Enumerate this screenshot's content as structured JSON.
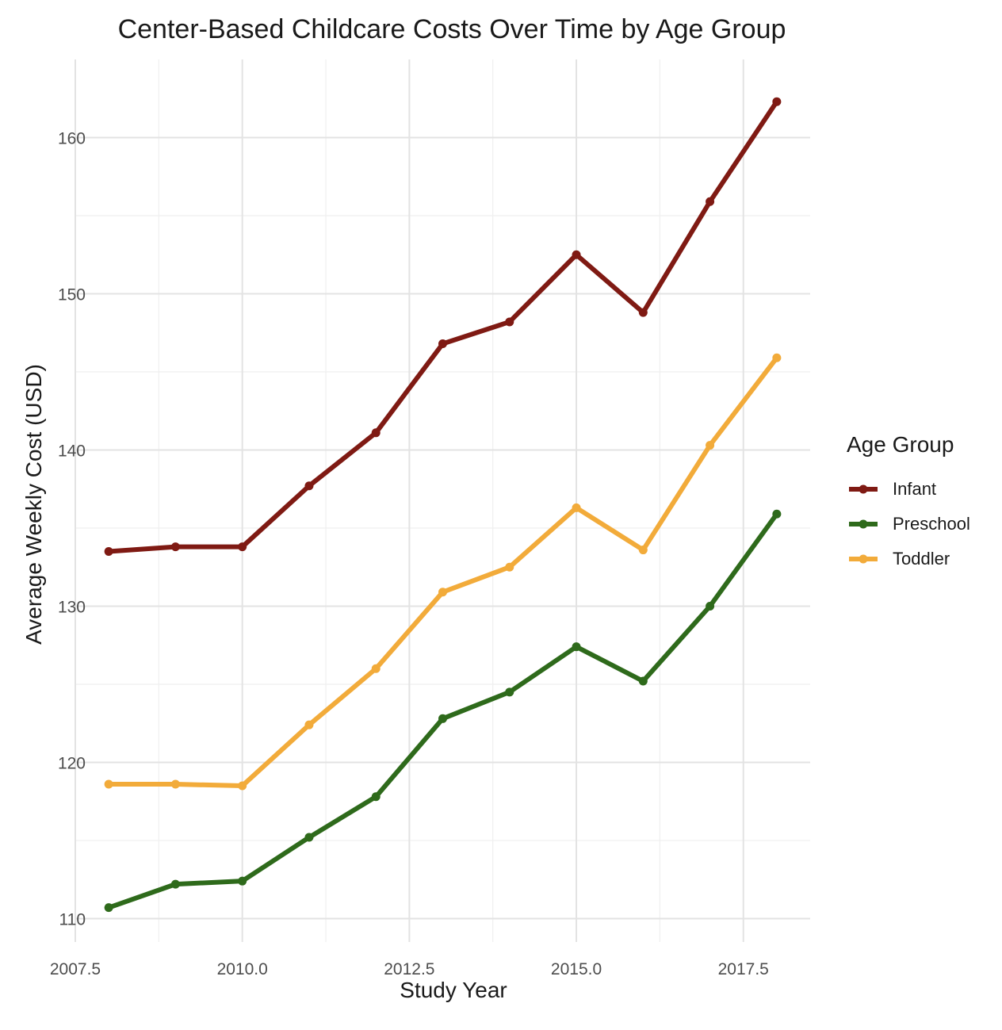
{
  "chart_data": {
    "type": "line",
    "title": "Center-Based Childcare Costs Over Time by Age Group",
    "xlabel": "Study Year",
    "ylabel": "Average Weekly Cost (USD)",
    "legend_title": "Age Group",
    "legend_position": "right",
    "grid": true,
    "xlim": [
      2007.5,
      2018.5
    ],
    "ylim": [
      108.5,
      165
    ],
    "x_ticks": [
      2007.5,
      2010.0,
      2012.5,
      2015.0,
      2017.5
    ],
    "x_tick_labels": [
      "2007.5",
      "2010.0",
      "2012.5",
      "2015.0",
      "2017.5"
    ],
    "y_ticks": [
      110,
      120,
      130,
      140,
      150,
      160
    ],
    "y_tick_labels": [
      "110",
      "120",
      "130",
      "140",
      "150",
      "160"
    ],
    "x": [
      2008,
      2009,
      2010,
      2011,
      2012,
      2013,
      2014,
      2015,
      2016,
      2017,
      2018
    ],
    "series": [
      {
        "name": "Infant",
        "color": "#7f1a13",
        "values": [
          133.5,
          133.8,
          133.8,
          137.7,
          141.1,
          146.8,
          148.2,
          152.5,
          148.8,
          155.9,
          162.3
        ]
      },
      {
        "name": "Preschool",
        "color": "#2e6a1b",
        "values": [
          110.7,
          112.2,
          112.4,
          115.2,
          117.8,
          122.8,
          124.5,
          127.4,
          125.2,
          130.0,
          135.9
        ]
      },
      {
        "name": "Toddler",
        "color": "#f2ab3a",
        "values": [
          118.6,
          118.6,
          118.5,
          122.4,
          126.0,
          130.9,
          132.5,
          136.3,
          133.6,
          140.3,
          145.9
        ]
      }
    ]
  }
}
